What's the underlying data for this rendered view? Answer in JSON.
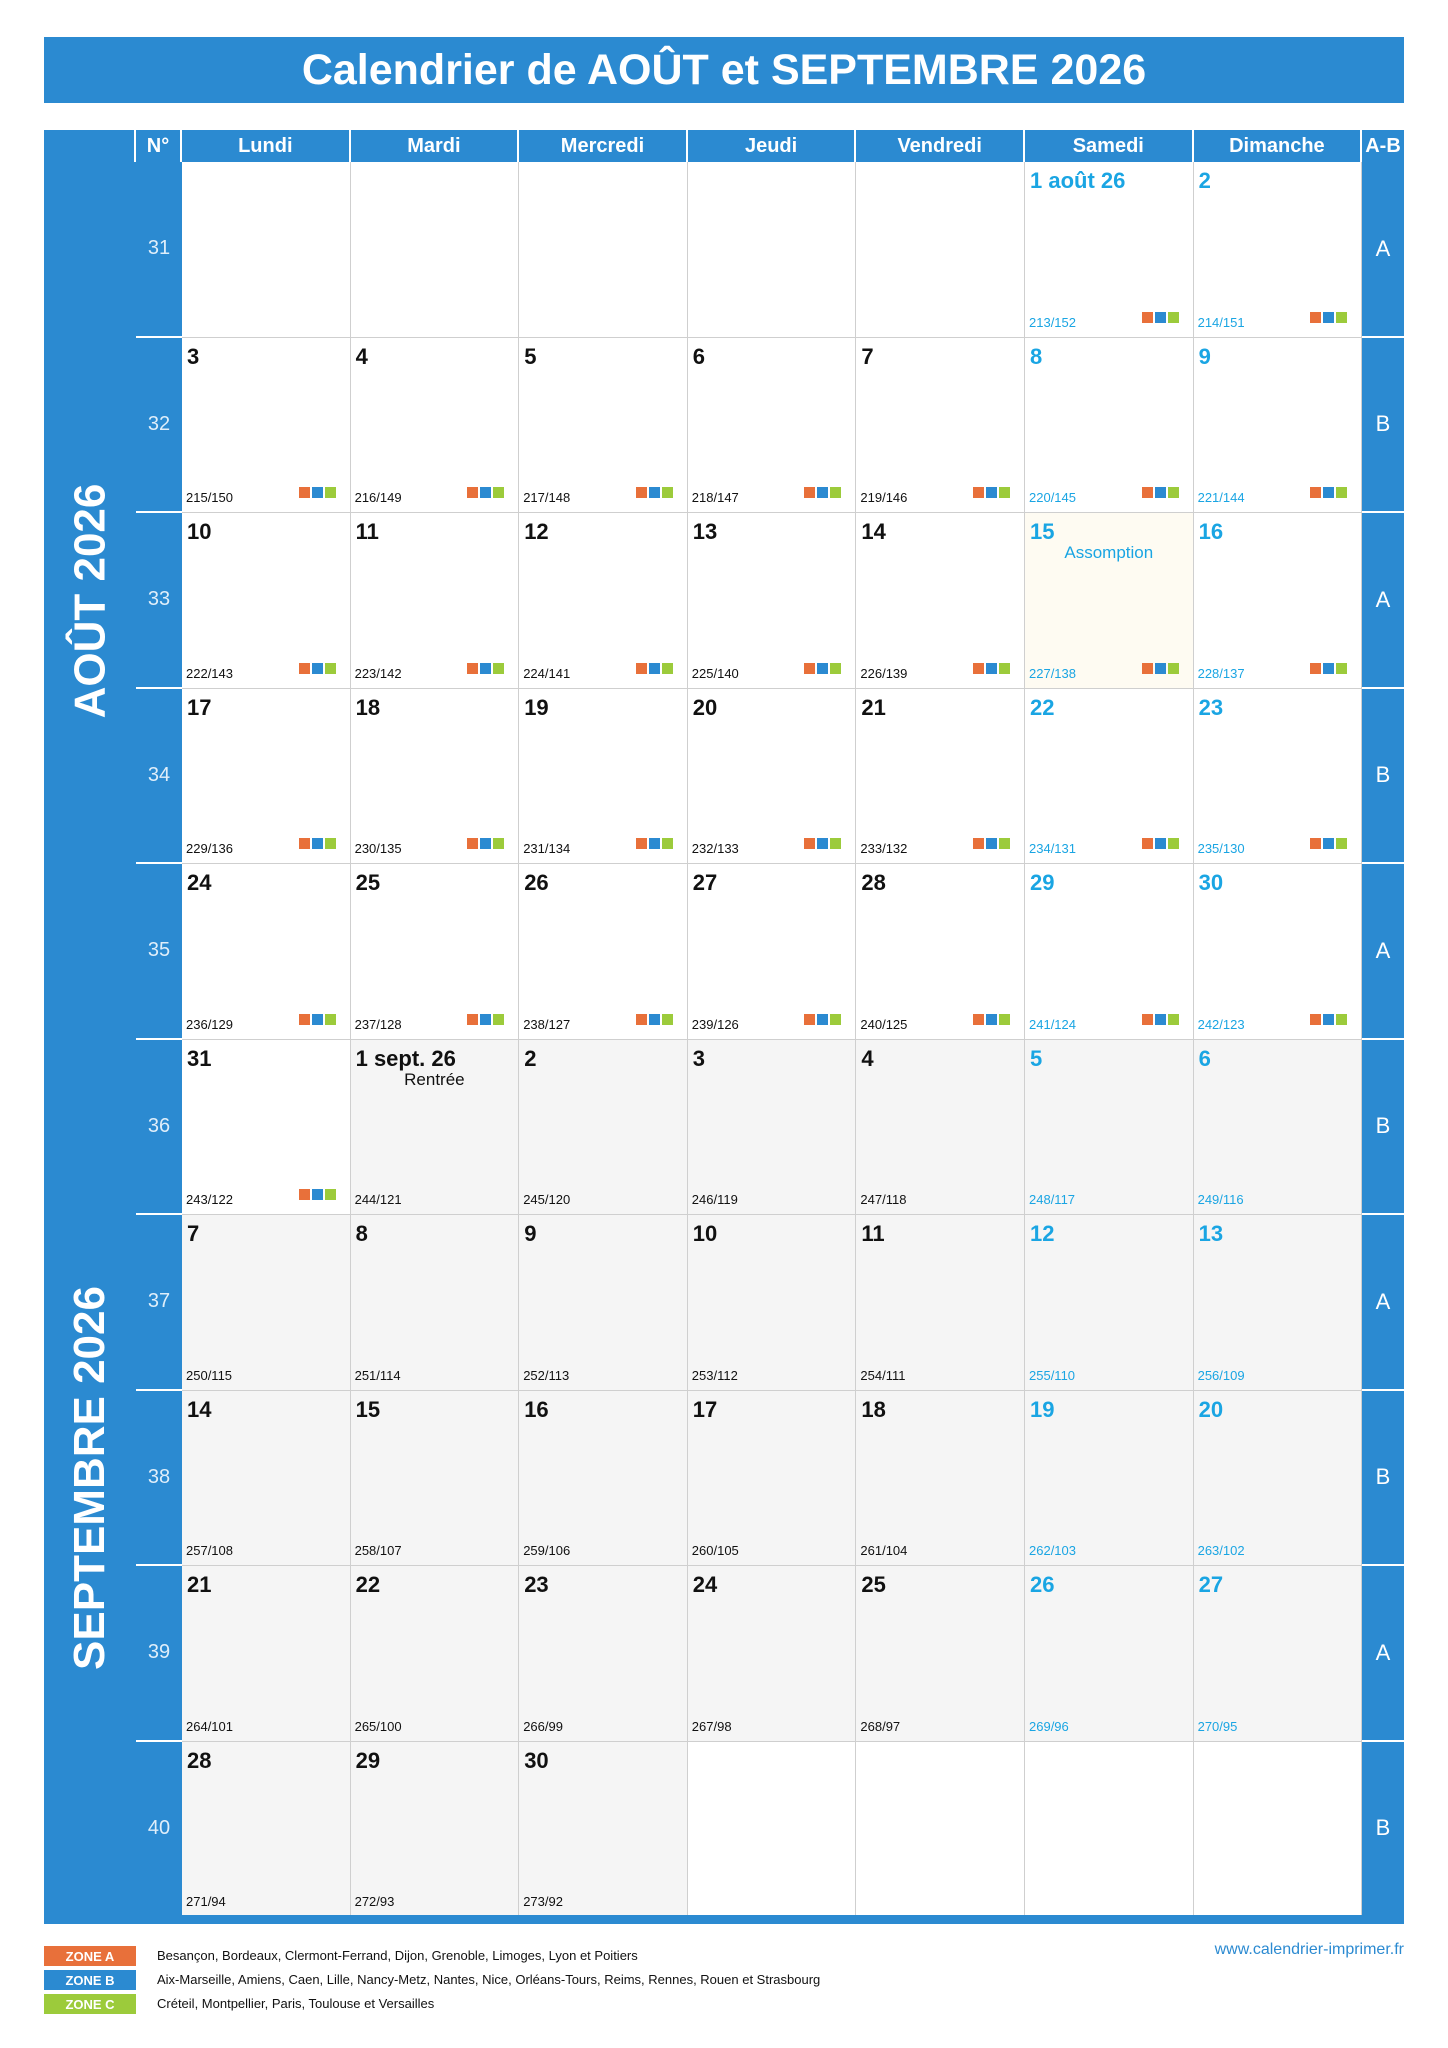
{
  "title": "Calendrier de AOÛT et SEPTEMBRE 2026",
  "headers": {
    "num": "N°",
    "days": [
      "Lundi",
      "Mardi",
      "Mercredi",
      "Jeudi",
      "Vendredi",
      "Samedi",
      "Dimanche"
    ],
    "ab": "A-B"
  },
  "months": [
    "AOÛT 2026",
    "SEPTEMBRE 2026"
  ],
  "colors": {
    "primary": "#2b8ad1",
    "weekend": "#1aa5e3",
    "zone_a": "#e8703a",
    "zone_b": "#2b8ad1",
    "zone_c": "#9ccb3b"
  },
  "weeks": [
    {
      "num": "31",
      "ab": "A",
      "days": [
        null,
        null,
        null,
        null,
        null,
        {
          "label": "1 août 26",
          "sub": "213/152",
          "we": true,
          "zones": true
        },
        {
          "label": "2",
          "sub": "214/151",
          "we": true,
          "zones": true
        }
      ]
    },
    {
      "num": "32",
      "ab": "B",
      "days": [
        {
          "label": "3",
          "sub": "215/150",
          "zones": true
        },
        {
          "label": "4",
          "sub": "216/149",
          "zones": true
        },
        {
          "label": "5",
          "sub": "217/148",
          "zones": true
        },
        {
          "label": "6",
          "sub": "218/147",
          "zones": true
        },
        {
          "label": "7",
          "sub": "219/146",
          "zones": true
        },
        {
          "label": "8",
          "sub": "220/145",
          "we": true,
          "zones": true
        },
        {
          "label": "9",
          "sub": "221/144",
          "we": true,
          "zones": true
        }
      ]
    },
    {
      "num": "33",
      "ab": "A",
      "days": [
        {
          "label": "10",
          "sub": "222/143",
          "zones": true
        },
        {
          "label": "11",
          "sub": "223/142",
          "zones": true
        },
        {
          "label": "12",
          "sub": "224/141",
          "zones": true
        },
        {
          "label": "13",
          "sub": "225/140",
          "zones": true
        },
        {
          "label": "14",
          "sub": "226/139",
          "zones": true
        },
        {
          "label": "15",
          "sub": "227/138",
          "we": true,
          "zones": true,
          "event": "Assomption",
          "holiday": true
        },
        {
          "label": "16",
          "sub": "228/137",
          "we": true,
          "zones": true
        }
      ]
    },
    {
      "num": "34",
      "ab": "B",
      "days": [
        {
          "label": "17",
          "sub": "229/136",
          "zones": true
        },
        {
          "label": "18",
          "sub": "230/135",
          "zones": true
        },
        {
          "label": "19",
          "sub": "231/134",
          "zones": true
        },
        {
          "label": "20",
          "sub": "232/133",
          "zones": true
        },
        {
          "label": "21",
          "sub": "233/132",
          "zones": true
        },
        {
          "label": "22",
          "sub": "234/131",
          "we": true,
          "zones": true
        },
        {
          "label": "23",
          "sub": "235/130",
          "we": true,
          "zones": true
        }
      ]
    },
    {
      "num": "35",
      "ab": "A",
      "days": [
        {
          "label": "24",
          "sub": "236/129",
          "zones": true
        },
        {
          "label": "25",
          "sub": "237/128",
          "zones": true
        },
        {
          "label": "26",
          "sub": "238/127",
          "zones": true
        },
        {
          "label": "27",
          "sub": "239/126",
          "zones": true
        },
        {
          "label": "28",
          "sub": "240/125",
          "zones": true
        },
        {
          "label": "29",
          "sub": "241/124",
          "we": true,
          "zones": true
        },
        {
          "label": "30",
          "sub": "242/123",
          "we": true,
          "zones": true
        }
      ]
    },
    {
      "num": "36",
      "ab": "B",
      "days": [
        {
          "label": "31",
          "sub": "243/122",
          "zones": true
        },
        {
          "label": "1 sept. 26",
          "sub": "244/121",
          "grey": true,
          "event": "Rentrée"
        },
        {
          "label": "2",
          "sub": "245/120",
          "grey": true
        },
        {
          "label": "3",
          "sub": "246/119",
          "grey": true
        },
        {
          "label": "4",
          "sub": "247/118",
          "grey": true
        },
        {
          "label": "5",
          "sub": "248/117",
          "we": true,
          "grey": true
        },
        {
          "label": "6",
          "sub": "249/116",
          "we": true,
          "grey": true
        }
      ]
    },
    {
      "num": "37",
      "ab": "A",
      "days": [
        {
          "label": "7",
          "sub": "250/115",
          "grey": true
        },
        {
          "label": "8",
          "sub": "251/114",
          "grey": true
        },
        {
          "label": "9",
          "sub": "252/113",
          "grey": true
        },
        {
          "label": "10",
          "sub": "253/112",
          "grey": true
        },
        {
          "label": "11",
          "sub": "254/111",
          "grey": true
        },
        {
          "label": "12",
          "sub": "255/110",
          "we": true,
          "grey": true
        },
        {
          "label": "13",
          "sub": "256/109",
          "we": true,
          "grey": true
        }
      ]
    },
    {
      "num": "38",
      "ab": "B",
      "days": [
        {
          "label": "14",
          "sub": "257/108",
          "grey": true
        },
        {
          "label": "15",
          "sub": "258/107",
          "grey": true
        },
        {
          "label": "16",
          "sub": "259/106",
          "grey": true
        },
        {
          "label": "17",
          "sub": "260/105",
          "grey": true
        },
        {
          "label": "18",
          "sub": "261/104",
          "grey": true
        },
        {
          "label": "19",
          "sub": "262/103",
          "we": true,
          "grey": true
        },
        {
          "label": "20",
          "sub": "263/102",
          "we": true,
          "grey": true
        }
      ]
    },
    {
      "num": "39",
      "ab": "A",
      "days": [
        {
          "label": "21",
          "sub": "264/101",
          "grey": true
        },
        {
          "label": "22",
          "sub": "265/100",
          "grey": true
        },
        {
          "label": "23",
          "sub": "266/99",
          "grey": true
        },
        {
          "label": "24",
          "sub": "267/98",
          "grey": true
        },
        {
          "label": "25",
          "sub": "268/97",
          "grey": true
        },
        {
          "label": "26",
          "sub": "269/96",
          "we": true,
          "grey": true
        },
        {
          "label": "27",
          "sub": "270/95",
          "we": true,
          "grey": true
        }
      ]
    },
    {
      "num": "40",
      "ab": "B",
      "days": [
        {
          "label": "28",
          "sub": "271/94",
          "grey": true
        },
        {
          "label": "29",
          "sub": "272/93",
          "grey": true
        },
        {
          "label": "30",
          "sub": "273/92",
          "grey": true
        },
        null,
        null,
        null,
        null
      ]
    }
  ],
  "zones": [
    {
      "tag": "ZONE A",
      "text": "Besançon, Bordeaux, Clermont-Ferrand, Dijon, Grenoble, Limoges, Lyon et Poitiers"
    },
    {
      "tag": "ZONE B",
      "text": "Aix-Marseille, Amiens, Caen, Lille, Nancy-Metz, Nantes, Nice, Orléans-Tours, Reims, Rennes, Rouen et Strasbourg"
    },
    {
      "tag": "ZONE C",
      "text": "Créteil, Montpellier, Paris, Toulouse et Versailles"
    }
  ],
  "website": "www.calendrier-imprimer.fr"
}
